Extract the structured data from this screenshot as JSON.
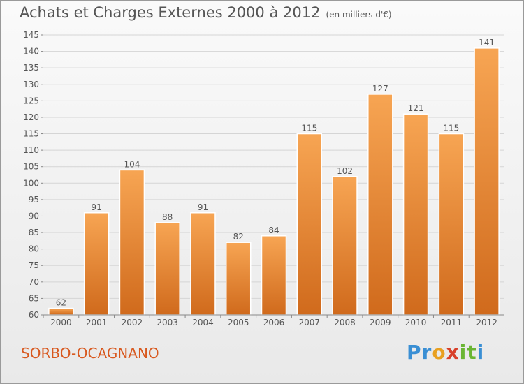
{
  "header": {
    "title": "Achats et Charges Externes 2000 à 2012",
    "unit": "(en milliers d'€)"
  },
  "footer": {
    "commune": "SORBO-OCAGNANO",
    "logo_letters": [
      "P",
      "r",
      "o",
      "x",
      "i",
      "t",
      "i"
    ]
  },
  "colors": {
    "bar_top": "#f7a553",
    "bar_bottom": "#d06a1c",
    "grid": "#d5d5d5",
    "text": "#555555"
  },
  "chart_data": {
    "type": "bar",
    "title": "Achats et Charges Externes 2000 à 2012",
    "ylabel": "(en milliers d'€)",
    "xlabel": "",
    "categories": [
      "2000",
      "2001",
      "2002",
      "2003",
      "2004",
      "2005",
      "2006",
      "2007",
      "2008",
      "2009",
      "2010",
      "2011",
      "2012"
    ],
    "values": [
      62,
      91,
      104,
      88,
      91,
      82,
      84,
      115,
      102,
      127,
      121,
      115,
      141
    ],
    "ylim": [
      60,
      145
    ],
    "yticks": [
      60,
      65,
      70,
      75,
      80,
      85,
      90,
      95,
      100,
      105,
      110,
      115,
      120,
      125,
      130,
      135,
      140,
      145
    ],
    "grid": true,
    "legend": "none"
  }
}
